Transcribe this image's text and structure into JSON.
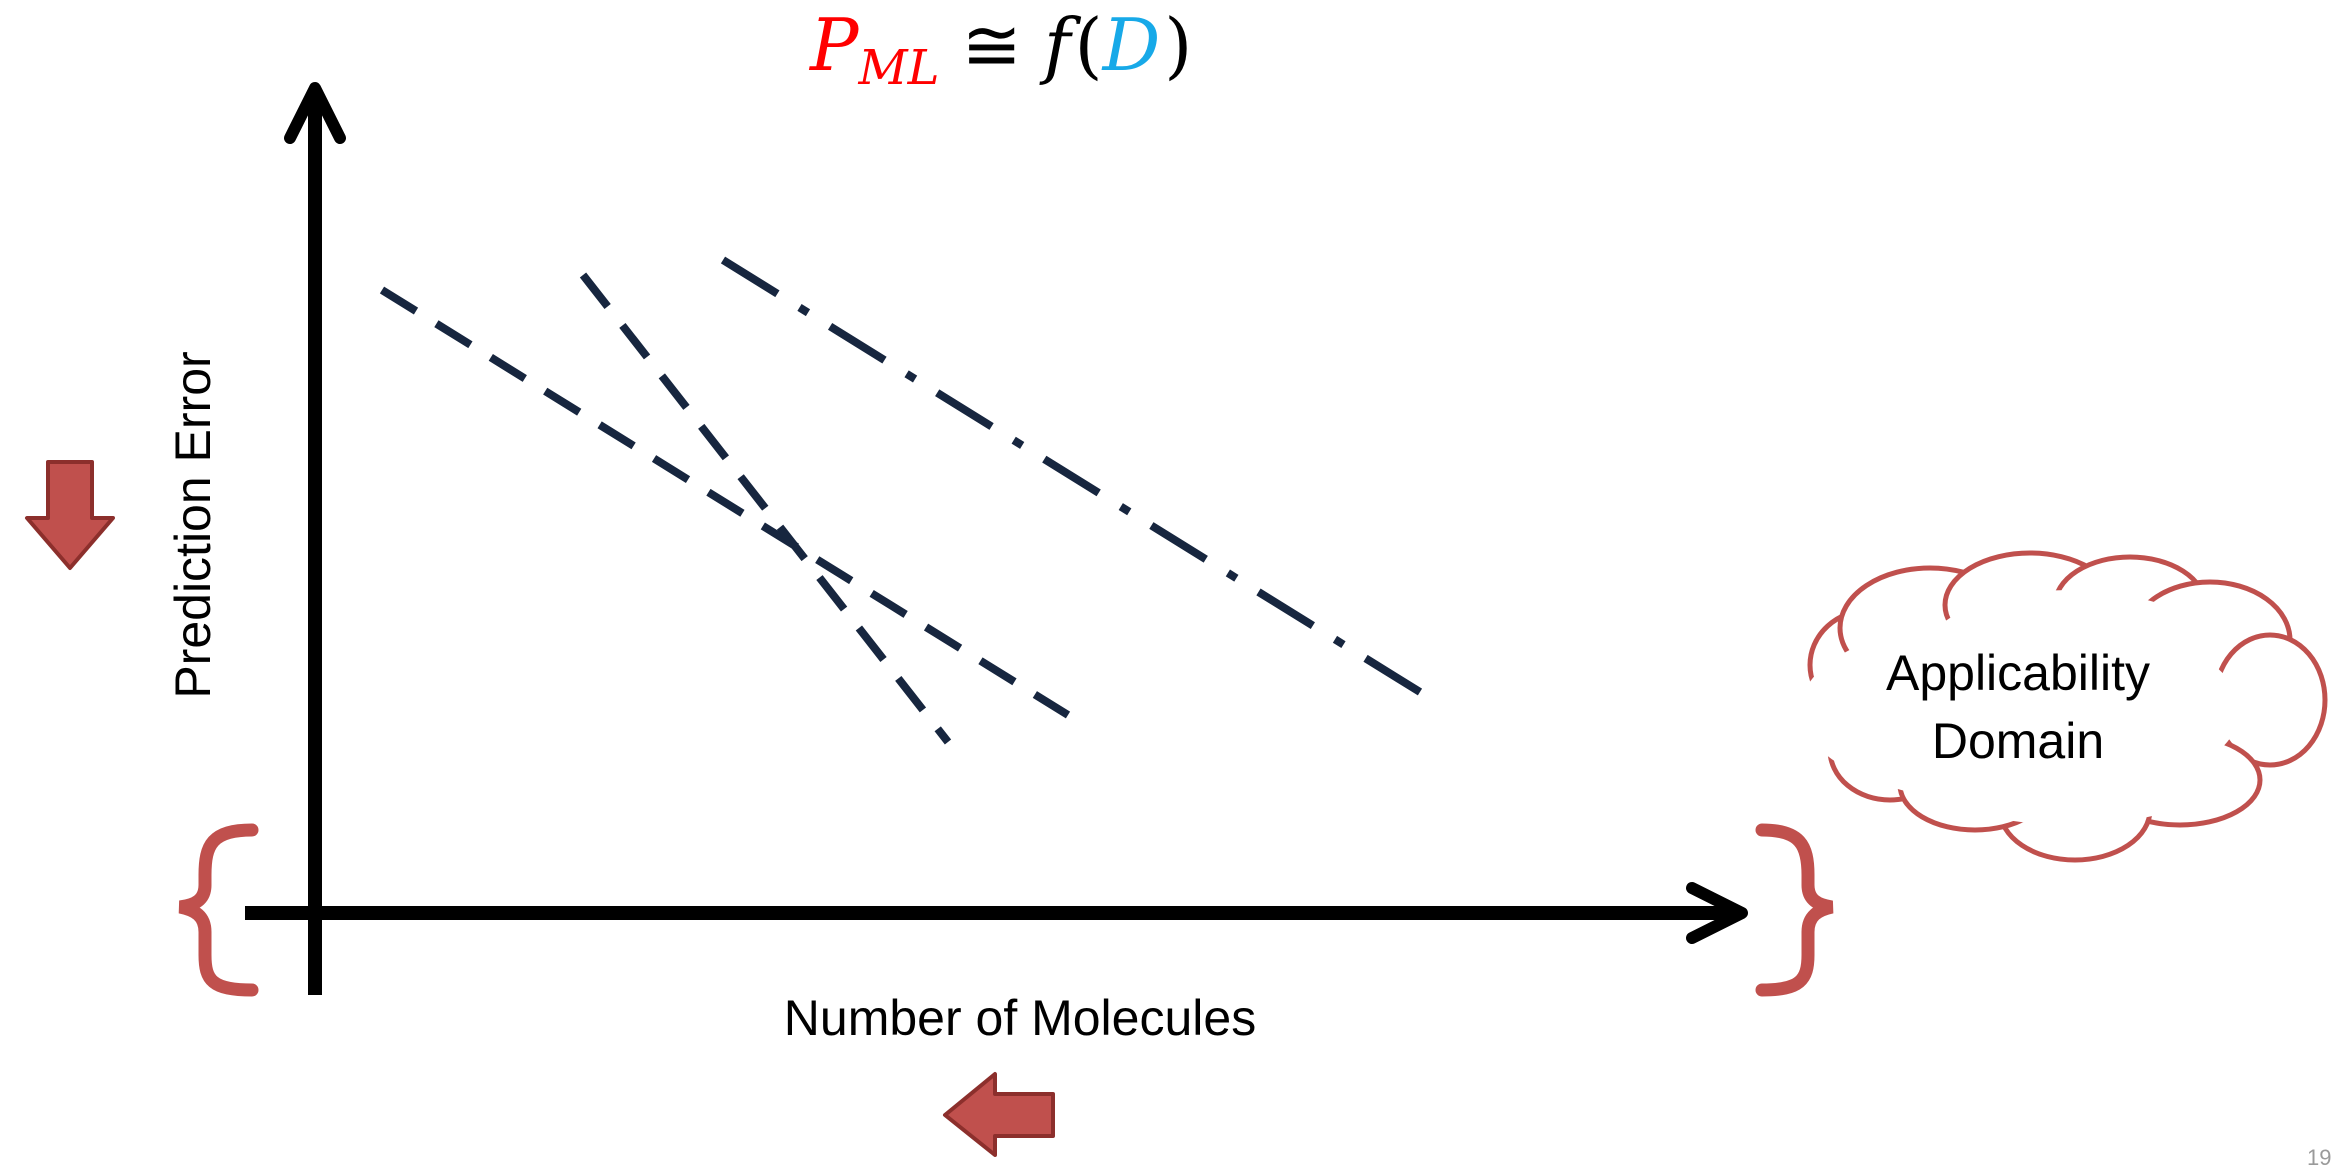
{
  "title": {
    "p_symbol": "P",
    "p_subscript": "ML",
    "relation": "≅",
    "function": "f",
    "open_paren": "(",
    "argument": "D",
    "close_paren": ")"
  },
  "axes": {
    "y_label": "Prediction Error",
    "x_label": "Number of Molecules"
  },
  "cloud": {
    "line1": "Applicability",
    "line2": "Domain"
  },
  "page_number": "19",
  "icons": {
    "y_indicator": "arrow-down-icon",
    "x_indicator": "arrow-left-icon",
    "left_bracket": "left-curly-brace-icon",
    "right_bracket": "right-curly-brace-icon"
  },
  "colors": {
    "formula_p": "#ff0000",
    "formula_d": "#17a9e8",
    "formula_text": "#000000",
    "axis": "#000000",
    "lines": "#17263f",
    "accent_red": "#c0504d",
    "accent_red_dark": "#8c2f2c"
  },
  "lines": [
    {
      "name": "dashed-line-gentle",
      "style": "dashed"
    },
    {
      "name": "dashed-line-steep",
      "style": "dashed"
    },
    {
      "name": "dash-dot-line",
      "style": "dash-dot"
    }
  ]
}
